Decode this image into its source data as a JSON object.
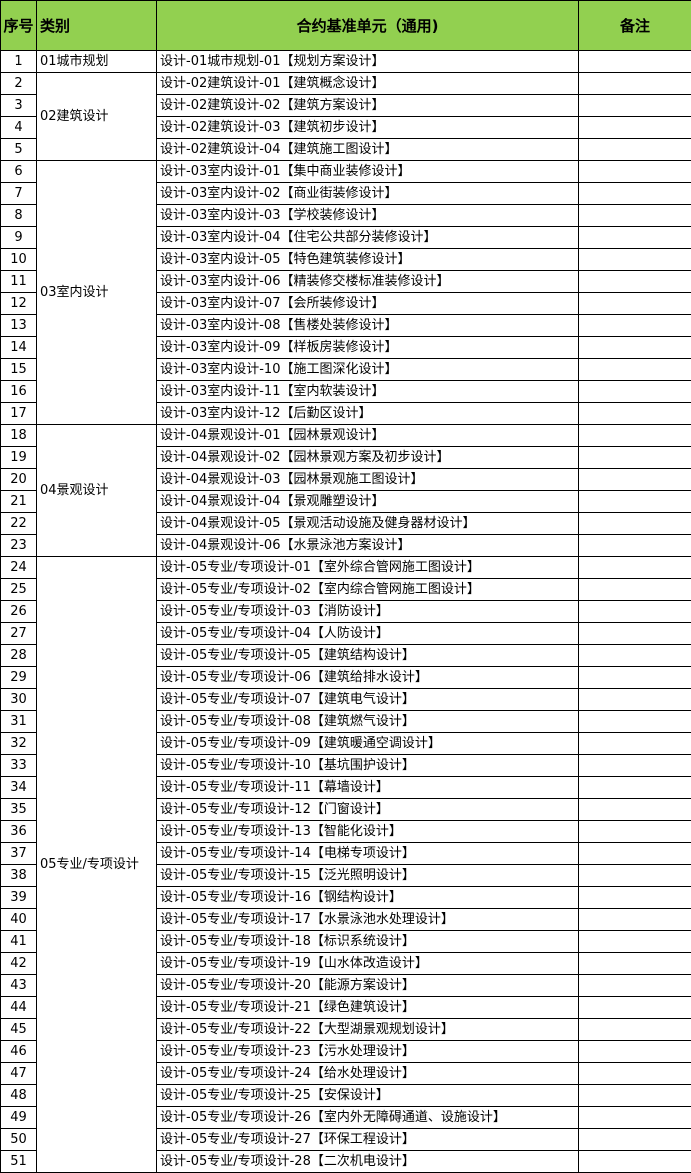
{
  "header": {
    "no": "序号",
    "category": "类别",
    "unit": "合约基准单元（通用)",
    "remark": "备注"
  },
  "colors": {
    "header_bg": "#92D050",
    "border": "#000000"
  },
  "groups": [
    {
      "name": "01城市规划",
      "rows": [
        {
          "no": "1",
          "unit": "设计-01城市规划-01【规划方案设计】",
          "remark": ""
        }
      ]
    },
    {
      "name": "02建筑设计",
      "rows": [
        {
          "no": "2",
          "unit": "设计-02建筑设计-01【建筑概念设计】",
          "remark": ""
        },
        {
          "no": "3",
          "unit": "设计-02建筑设计-02【建筑方案设计】",
          "remark": ""
        },
        {
          "no": "4",
          "unit": "设计-02建筑设计-03【建筑初步设计】",
          "remark": ""
        },
        {
          "no": "5",
          "unit": "设计-02建筑设计-04【建筑施工图设计】",
          "remark": ""
        }
      ]
    },
    {
      "name": "03室内设计",
      "rows": [
        {
          "no": "6",
          "unit": "设计-03室内设计-01【集中商业装修设计】",
          "remark": ""
        },
        {
          "no": "7",
          "unit": "设计-03室内设计-02【商业街装修设计】",
          "remark": ""
        },
        {
          "no": "8",
          "unit": "设计-03室内设计-03【学校装修设计】",
          "remark": ""
        },
        {
          "no": "9",
          "unit": "设计-03室内设计-04【住宅公共部分装修设计】",
          "remark": ""
        },
        {
          "no": "10",
          "unit": "设计-03室内设计-05【特色建筑装修设计】",
          "remark": ""
        },
        {
          "no": "11",
          "unit": "设计-03室内设计-06【精装修交楼标准装修设计】",
          "remark": ""
        },
        {
          "no": "12",
          "unit": "设计-03室内设计-07【会所装修设计】",
          "remark": ""
        },
        {
          "no": "13",
          "unit": "设计-03室内设计-08【售楼处装修设计】",
          "remark": ""
        },
        {
          "no": "14",
          "unit": "设计-03室内设计-09【样板房装修设计】",
          "remark": ""
        },
        {
          "no": "15",
          "unit": "设计-03室内设计-10【施工图深化设计】",
          "remark": ""
        },
        {
          "no": "16",
          "unit": "设计-03室内设计-11【室内软装设计】",
          "remark": ""
        },
        {
          "no": "17",
          "unit": "设计-03室内设计-12【后勤区设计】",
          "remark": ""
        }
      ]
    },
    {
      "name": "04景观设计",
      "rows": [
        {
          "no": "18",
          "unit": "设计-04景观设计-01【园林景观设计】",
          "remark": ""
        },
        {
          "no": "19",
          "unit": "设计-04景观设计-02【园林景观方案及初步设计】",
          "remark": ""
        },
        {
          "no": "20",
          "unit": "设计-04景观设计-03【园林景观施工图设计】",
          "remark": ""
        },
        {
          "no": "21",
          "unit": "设计-04景观设计-04【景观雕塑设计】",
          "remark": ""
        },
        {
          "no": "22",
          "unit": "设计-04景观设计-05【景观活动设施及健身器材设计】",
          "remark": ""
        },
        {
          "no": "23",
          "unit": "设计-04景观设计-06【水景泳池方案设计】",
          "remark": ""
        }
      ]
    },
    {
      "name": "05专业/专项设计",
      "rows": [
        {
          "no": "24",
          "unit": "设计-05专业/专项设计-01【室外综合管网施工图设计】",
          "remark": ""
        },
        {
          "no": "25",
          "unit": "设计-05专业/专项设计-02【室内综合管网施工图设计】",
          "remark": ""
        },
        {
          "no": "26",
          "unit": "设计-05专业/专项设计-03【消防设计】",
          "remark": ""
        },
        {
          "no": "27",
          "unit": "设计-05专业/专项设计-04【人防设计】",
          "remark": ""
        },
        {
          "no": "28",
          "unit": "设计-05专业/专项设计-05【建筑结构设计】",
          "remark": ""
        },
        {
          "no": "29",
          "unit": "设计-05专业/专项设计-06【建筑给排水设计】",
          "remark": ""
        },
        {
          "no": "30",
          "unit": "设计-05专业/专项设计-07【建筑电气设计】",
          "remark": ""
        },
        {
          "no": "31",
          "unit": "设计-05专业/专项设计-08【建筑燃气设计】",
          "remark": ""
        },
        {
          "no": "32",
          "unit": "设计-05专业/专项设计-09【建筑暖通空调设计】",
          "remark": ""
        },
        {
          "no": "33",
          "unit": "设计-05专业/专项设计-10【基坑围护设计】",
          "remark": ""
        },
        {
          "no": "34",
          "unit": "设计-05专业/专项设计-11【幕墙设计】",
          "remark": ""
        },
        {
          "no": "35",
          "unit": "设计-05专业/专项设计-12【门窗设计】",
          "remark": ""
        },
        {
          "no": "36",
          "unit": "设计-05专业/专项设计-13【智能化设计】",
          "remark": ""
        },
        {
          "no": "37",
          "unit": "设计-05专业/专项设计-14【电梯专项设计】",
          "remark": ""
        },
        {
          "no": "38",
          "unit": "设计-05专业/专项设计-15【泛光照明设计】",
          "remark": ""
        },
        {
          "no": "39",
          "unit": "设计-05专业/专项设计-16【钢结构设计】",
          "remark": ""
        },
        {
          "no": "40",
          "unit": "设计-05专业/专项设计-17【水景泳池水处理设计】",
          "remark": ""
        },
        {
          "no": "41",
          "unit": "设计-05专业/专项设计-18【标识系统设计】",
          "remark": ""
        },
        {
          "no": "42",
          "unit": "设计-05专业/专项设计-19【山水体改造设计】",
          "remark": ""
        },
        {
          "no": "43",
          "unit": "设计-05专业/专项设计-20【能源方案设计】",
          "remark": ""
        },
        {
          "no": "44",
          "unit": "设计-05专业/专项设计-21【绿色建筑设计】",
          "remark": ""
        },
        {
          "no": "45",
          "unit": "设计-05专业/专项设计-22【大型湖景观规划设计】",
          "remark": ""
        },
        {
          "no": "46",
          "unit": "设计-05专业/专项设计-23【污水处理设计】",
          "remark": ""
        },
        {
          "no": "47",
          "unit": "设计-05专业/专项设计-24【给水处理设计】",
          "remark": ""
        },
        {
          "no": "48",
          "unit": "设计-05专业/专项设计-25【安保设计】",
          "remark": ""
        },
        {
          "no": "49",
          "unit": "设计-05专业/专项设计-26【室内外无障碍通道、设施设计】",
          "remark": ""
        },
        {
          "no": "50",
          "unit": "设计-05专业/专项设计-27【环保工程设计】",
          "remark": ""
        },
        {
          "no": "51",
          "unit": "设计-05专业/专项设计-28【二次机电设计】",
          "remark": ""
        }
      ]
    }
  ]
}
